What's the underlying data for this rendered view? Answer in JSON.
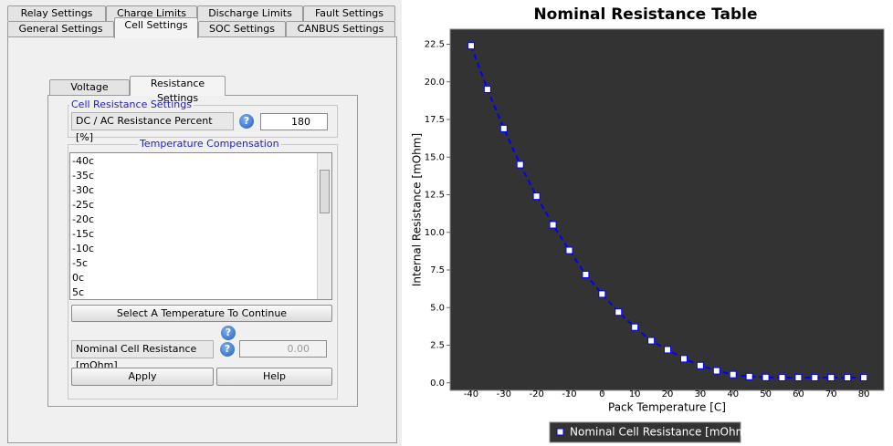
{
  "tabs": {
    "row1": [
      "Relay Settings",
      "Charge Limits",
      "Discharge Limits",
      "Fault Settings"
    ],
    "row2": [
      "General Settings",
      "Cell Settings",
      "SOC Settings",
      "CANBUS Settings"
    ]
  },
  "sub_tabs": [
    "Voltage Settings",
    "Resistance Settings"
  ],
  "cell_resistance": {
    "title": "Cell Resistance Settings",
    "label": "DC / AC Resistance Percent [%]",
    "value": "180"
  },
  "help_icon": "?",
  "temperature_compensation": {
    "title": "Temperature Compensation",
    "items": [
      "-40c",
      "-35c",
      "-30c",
      "-25c",
      "-20c",
      "-15c",
      "-10c",
      "-5c",
      "0c",
      "5c"
    ],
    "select_button": "Select A Temperature To Continue",
    "label": "Nominal Cell Resistance [mOhm]",
    "value": "0.00"
  },
  "buttons": [
    "Apply",
    "Help"
  ],
  "chart_data": {
    "type": "line",
    "title": "Nominal Resistance Table",
    "x_label": "Pack Temperature [C]",
    "y_label": "Internal Resistance [mOhm]",
    "x": [
      -40,
      -35,
      -30,
      -25,
      -20,
      -15,
      -10,
      -5,
      0,
      5,
      10,
      15,
      20,
      25,
      30,
      35,
      40,
      45,
      50,
      55,
      60,
      65,
      70,
      75,
      80
    ],
    "series": [
      {
        "name": "Nominal Cell Resistance [mOhm]",
        "color": "#0000ff",
        "values": [
          22.4,
          19.5,
          16.9,
          14.5,
          12.4,
          10.5,
          8.8,
          7.2,
          5.9,
          4.7,
          3.7,
          2.8,
          2.2,
          1.6,
          1.15,
          0.8,
          0.55,
          0.42,
          0.36,
          0.35,
          0.35,
          0.35,
          0.35,
          0.35,
          0.35
        ]
      }
    ],
    "xlim": [
      -46.4,
      86.1
    ],
    "ylim": [
      -0.5,
      23.5
    ],
    "xticks": [
      -40,
      -30,
      -20,
      -10,
      0,
      10,
      20,
      30,
      40,
      50,
      60,
      70,
      80
    ],
    "yticks": [
      {
        "value": 0,
        "label": "0.0"
      },
      2.5,
      {
        "value": 5,
        "label": "5.0"
      },
      7.5,
      {
        "value": 10,
        "label": "10.0"
      },
      12.5,
      {
        "value": 15,
        "label": "15.0"
      },
      17.5,
      {
        "value": 20,
        "label": "20.0"
      },
      22.5
    ],
    "grid": false,
    "legend": "bottom"
  }
}
